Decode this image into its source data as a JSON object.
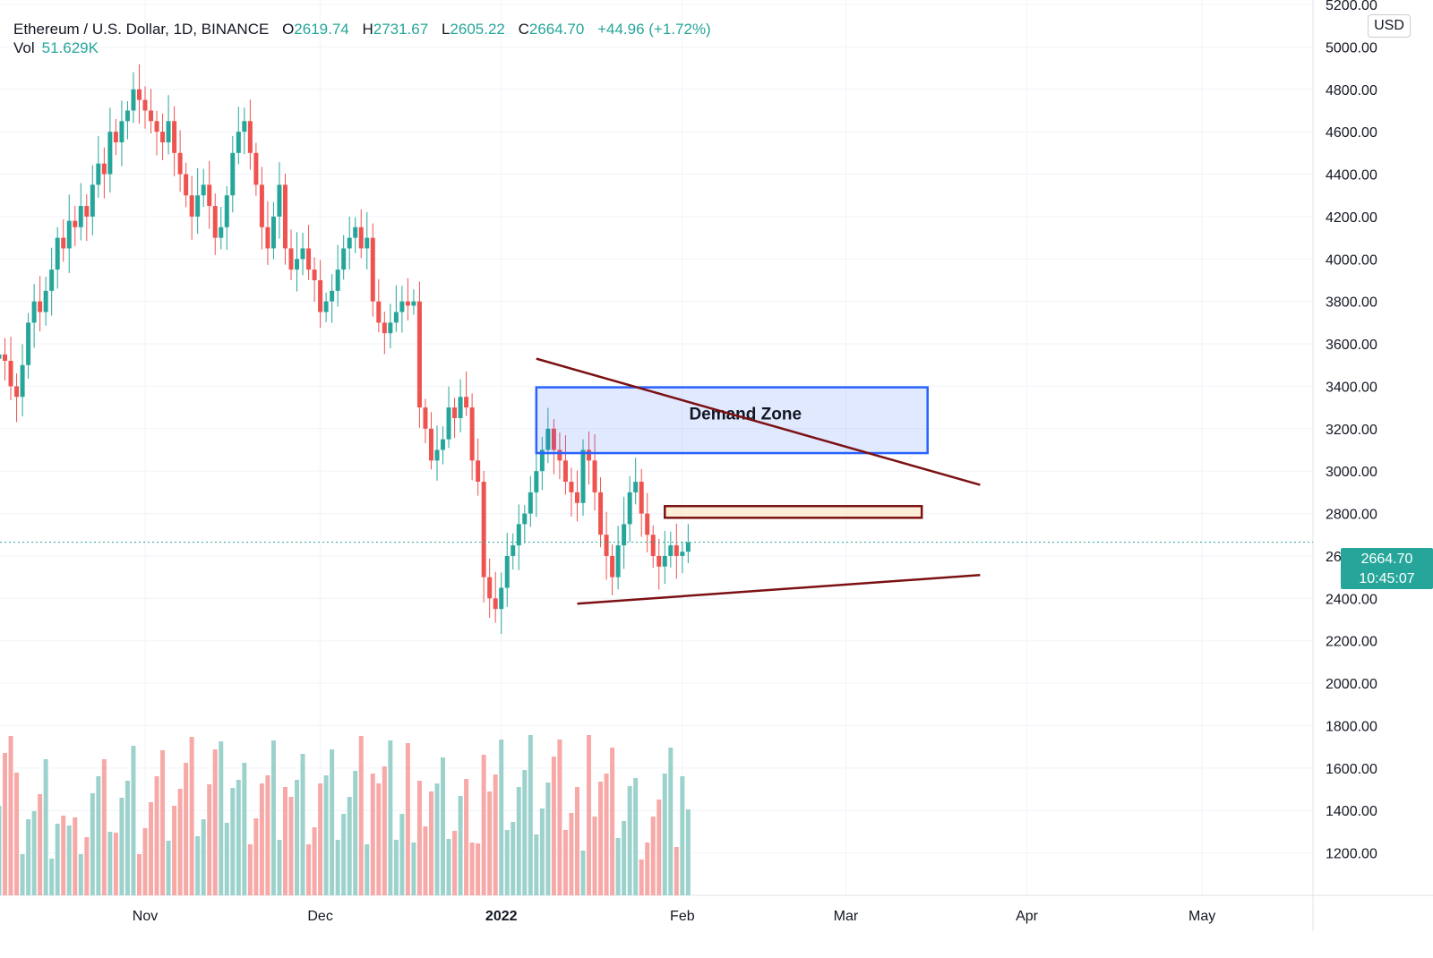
{
  "header": {
    "symbol": "Ethereum / U.S. Dollar, 1D, BINANCE",
    "open_label": "O",
    "open": "2619.74",
    "high_label": "H",
    "high": "2731.67",
    "low_label": "L",
    "low": "2605.22",
    "close_label": "C",
    "close": "2664.70",
    "change": "+44.96 (+1.72%)",
    "volume_label": "Vol",
    "volume": "51.629K"
  },
  "currency": "USD",
  "last_price": {
    "price": "2664.70",
    "countdown": "10:45:07"
  },
  "colors": {
    "up": "#26a69a",
    "down": "#ef5350",
    "up_vol": "#9dd2cc",
    "down_vol": "#f7a9a7",
    "demand_zone": "#2962ff",
    "trendline": "#7b1113"
  },
  "chart_data": {
    "type": "candlestick",
    "ylim": [
      1000,
      5200
    ],
    "y_ticks": [
      "1200.00",
      "1400.00",
      "1600.00",
      "1800.00",
      "2000.00",
      "2200.00",
      "2400.00",
      "2600.00",
      "2800.00",
      "3000.00",
      "3200.00",
      "3400.00",
      "3600.00",
      "3800.00",
      "4000.00",
      "4200.00",
      "4400.00",
      "4600.00",
      "4800.00",
      "5000.00",
      "5200.00"
    ],
    "x_ticks": [
      {
        "label": "Nov",
        "date": "2021-11-01",
        "bold": false
      },
      {
        "label": "Dec",
        "date": "2021-12-01",
        "bold": false
      },
      {
        "label": "2022",
        "date": "2022-01-01",
        "bold": true
      },
      {
        "label": "Feb",
        "date": "2022-02-01",
        "bold": false
      },
      {
        "label": "Mar",
        "date": "2022-03-01",
        "bold": false
      },
      {
        "label": "Apr",
        "date": "2022-04-01",
        "bold": false
      },
      {
        "label": "May",
        "date": "2022-05-01",
        "bold": false
      }
    ],
    "closes": [
      3550,
      3520,
      3400,
      3350,
      3500,
      3700,
      3800,
      3750,
      3850,
      3950,
      4100,
      4050,
      4180,
      4150,
      4250,
      4200,
      4350,
      4450,
      4400,
      4600,
      4550,
      4650,
      4700,
      4800,
      4750,
      4700,
      4650,
      4600,
      4550,
      4650,
      4500,
      4400,
      4300,
      4200,
      4300,
      4350,
      4250,
      4100,
      4150,
      4300,
      4500,
      4600,
      4650,
      4500,
      4350,
      4150,
      4050,
      4200,
      4350,
      4050,
      3950,
      4000,
      4050,
      3950,
      3900,
      3750,
      3800,
      3850,
      3950,
      4050,
      4100,
      4150,
      4050,
      4100,
      3800,
      3700,
      3650,
      3700,
      3750,
      3800,
      3780,
      3800,
      3300,
      3200,
      3050,
      3100,
      3150,
      3300,
      3250,
      3350,
      3300,
      3050,
      2950,
      2500,
      2400,
      2350,
      2450,
      2600,
      2650,
      2750,
      2800,
      2900,
      3000,
      3100,
      3200,
      3100,
      3050,
      2950,
      2900,
      2850,
      3100,
      3050,
      2900,
      2700,
      2600,
      2500,
      2650,
      2750,
      2900,
      2950,
      2800,
      2700,
      2600,
      2550,
      2600,
      2650,
      2600,
      2620,
      2664.7
    ],
    "annotations": {
      "demand_zone": {
        "label": "Demand Zone",
        "from": "2022-01-07",
        "to": "2022-03-15",
        "price_low": 3085,
        "price_high": 3395
      },
      "resistance_box": {
        "from": "2022-01-29",
        "to": "2022-03-14",
        "price_low": 2780,
        "price_high": 2835
      },
      "upper_trendline": {
        "start": {
          "date": "2022-01-07",
          "price": 3530
        },
        "end": {
          "date": "2022-03-24",
          "price": 2935
        }
      },
      "lower_trendline": {
        "start": {
          "date": "2022-01-14",
          "price": 2375
        },
        "end": {
          "date": "2022-03-24",
          "price": 2510
        }
      }
    }
  }
}
